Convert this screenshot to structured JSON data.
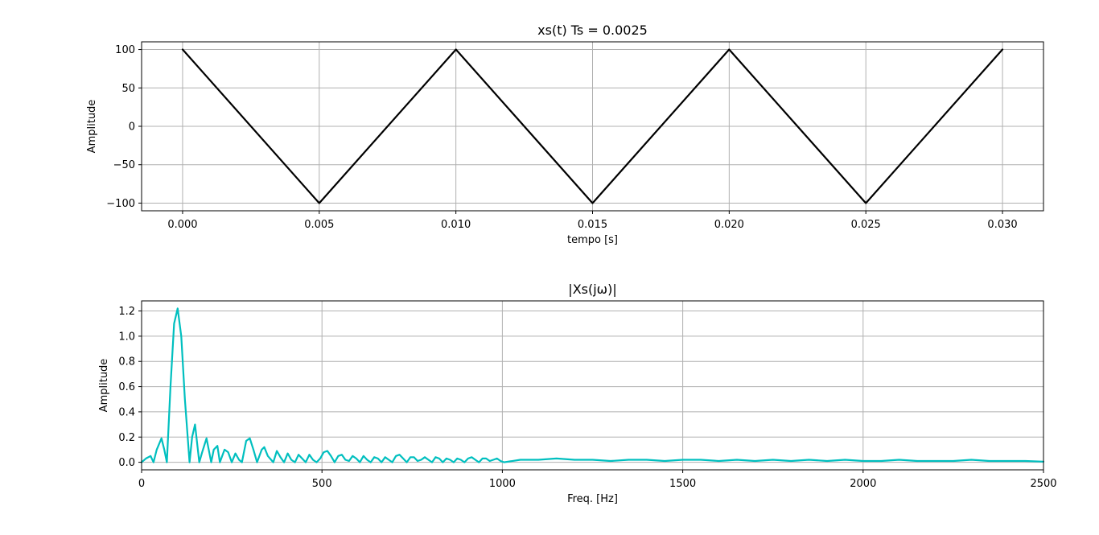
{
  "chart_data": [
    {
      "type": "line",
      "title": "xs(t) Ts = 0.0025",
      "xlabel": "tempo [s]",
      "ylabel": "Amplitude",
      "xlim": [
        -0.0015,
        0.0315
      ],
      "ylim": [
        -110,
        110
      ],
      "xticks": [
        0.0,
        0.005,
        0.01,
        0.015,
        0.02,
        0.025,
        0.03
      ],
      "xtick_labels": [
        "0.000",
        "0.005",
        "0.010",
        "0.015",
        "0.020",
        "0.025",
        "0.030"
      ],
      "yticks": [
        100,
        50,
        0,
        -50,
        -100
      ],
      "ytick_labels": [
        "100",
        "50",
        "0",
        "−50",
        "−100"
      ],
      "grid": true,
      "series": [
        {
          "color": "#000000",
          "x": [
            0.0,
            0.005,
            0.01,
            0.015,
            0.02,
            0.025,
            0.03
          ],
          "y": [
            100,
            -100,
            100,
            -100,
            100,
            -100,
            100
          ]
        }
      ]
    },
    {
      "type": "line",
      "title": "|Xs(jω)|",
      "xlabel": "Freq. [Hz]",
      "ylabel": "Amplitude",
      "xlim": [
        0,
        2500
      ],
      "ylim": [
        -0.06,
        1.28
      ],
      "xticks": [
        0,
        500,
        1000,
        1500,
        2000,
        2500
      ],
      "xtick_labels": [
        "0",
        "500",
        "1000",
        "1500",
        "2000",
        "2500"
      ],
      "yticks": [
        1.2,
        1.0,
        0.8,
        0.6,
        0.4,
        0.2,
        0.0
      ],
      "ytick_labels": [
        "1.2",
        "1.0",
        "0.8",
        "0.6",
        "0.4",
        "0.2",
        "0.0"
      ],
      "grid": true,
      "series": [
        {
          "color": "#00bfbf",
          "x": [
            0,
            12,
            25,
            33,
            42,
            55,
            63,
            70,
            80,
            90,
            100,
            110,
            120,
            133,
            140,
            148,
            160,
            168,
            180,
            193,
            200,
            210,
            217,
            230,
            240,
            250,
            260,
            270,
            278,
            290,
            300,
            310,
            320,
            333,
            340,
            350,
            365,
            375,
            385,
            395,
            405,
            415,
            425,
            435,
            445,
            455,
            465,
            475,
            485,
            495,
            505,
            515,
            525,
            535,
            545,
            555,
            565,
            575,
            585,
            595,
            605,
            615,
            625,
            635,
            645,
            655,
            665,
            675,
            685,
            695,
            705,
            715,
            725,
            735,
            745,
            755,
            765,
            775,
            785,
            795,
            805,
            815,
            825,
            835,
            845,
            855,
            865,
            875,
            885,
            895,
            905,
            915,
            925,
            935,
            945,
            955,
            965,
            975,
            985,
            995,
            1005,
            1050,
            1100,
            1150,
            1200,
            1250,
            1300,
            1350,
            1400,
            1450,
            1500,
            1550,
            1600,
            1650,
            1700,
            1750,
            1800,
            1850,
            1900,
            1950,
            2000,
            2050,
            2100,
            2150,
            2200,
            2250,
            2300,
            2350,
            2400,
            2450,
            2500
          ],
          "y": [
            0.0,
            0.03,
            0.05,
            0.0,
            0.1,
            0.19,
            0.1,
            0.0,
            0.6,
            1.1,
            1.22,
            1.0,
            0.5,
            0.0,
            0.2,
            0.3,
            0.0,
            0.08,
            0.19,
            0.0,
            0.1,
            0.13,
            0.0,
            0.1,
            0.08,
            0.0,
            0.07,
            0.02,
            0.0,
            0.17,
            0.19,
            0.1,
            0.0,
            0.1,
            0.12,
            0.05,
            0.0,
            0.09,
            0.04,
            0.0,
            0.07,
            0.02,
            0.0,
            0.06,
            0.03,
            0.0,
            0.06,
            0.02,
            0.0,
            0.03,
            0.08,
            0.09,
            0.05,
            0.0,
            0.05,
            0.06,
            0.02,
            0.01,
            0.05,
            0.03,
            0.0,
            0.05,
            0.02,
            0.0,
            0.04,
            0.03,
            0.0,
            0.04,
            0.02,
            0.0,
            0.05,
            0.06,
            0.03,
            0.0,
            0.04,
            0.04,
            0.01,
            0.02,
            0.04,
            0.02,
            0.0,
            0.04,
            0.03,
            0.0,
            0.03,
            0.02,
            0.0,
            0.03,
            0.02,
            0.0,
            0.03,
            0.04,
            0.02,
            0.0,
            0.03,
            0.03,
            0.01,
            0.02,
            0.03,
            0.01,
            0.0,
            0.02,
            0.02,
            0.03,
            0.02,
            0.02,
            0.01,
            0.02,
            0.02,
            0.01,
            0.02,
            0.02,
            0.01,
            0.02,
            0.01,
            0.02,
            0.01,
            0.02,
            0.01,
            0.02,
            0.01,
            0.01,
            0.02,
            0.01,
            0.01,
            0.01,
            0.02,
            0.01,
            0.01,
            0.01,
            0.005
          ]
        }
      ]
    }
  ]
}
